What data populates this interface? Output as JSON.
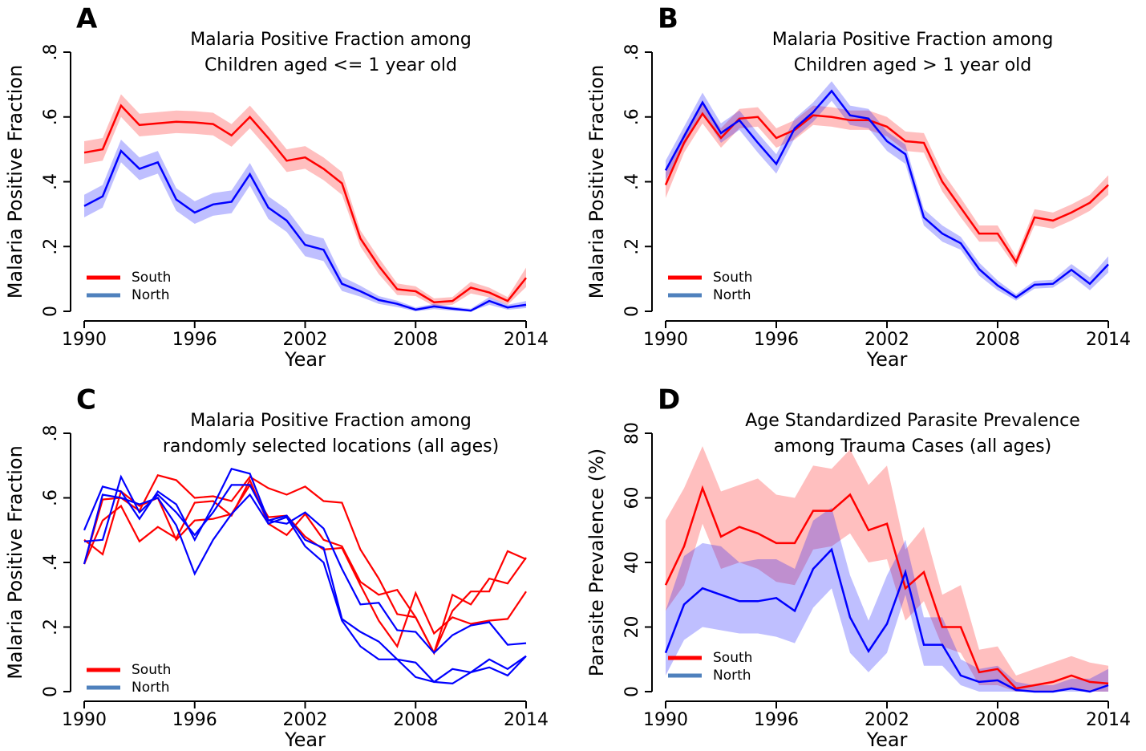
{
  "chart_data": [
    {
      "type": "line",
      "panel_label": "A",
      "title": [
        "Malaria Positive Fraction among",
        "Children aged <= 1 year old"
      ],
      "x_label": "Year",
      "y_label": "Malaria Positive Fraction",
      "x": [
        1990,
        1991,
        1992,
        1993,
        1994,
        1995,
        1996,
        1997,
        1998,
        1999,
        2000,
        2001,
        2002,
        2003,
        2004,
        2005,
        2006,
        2007,
        2008,
        2009,
        2010,
        2011,
        2012,
        2013,
        2014
      ],
      "xlim": [
        1990,
        2014
      ],
      "xticks": [
        1990,
        1996,
        2002,
        2008,
        2014
      ],
      "ylim": [
        0,
        0.8
      ],
      "yticks": [
        0,
        {
          "value": 0.2,
          "label": ".2"
        },
        {
          "value": 0.4,
          "label": ".4"
        },
        {
          "value": 0.6,
          "label": ".6"
        },
        {
          "value": 0.8,
          "label": ".8"
        }
      ],
      "legend_position": "lower left",
      "series": [
        {
          "name": "South",
          "color": "#ff0000",
          "band_color": "rgba(255,0,0,0.25)",
          "legend_color": "#ff0000",
          "values": [
            0.49,
            0.5,
            0.635,
            0.575,
            0.58,
            0.585,
            0.583,
            0.578,
            0.543,
            0.6,
            0.535,
            0.465,
            0.475,
            0.44,
            0.395,
            0.225,
            0.14,
            0.068,
            0.062,
            0.028,
            0.032,
            0.073,
            0.058,
            0.032,
            0.103
          ],
          "lower": [
            0.455,
            0.465,
            0.6,
            0.54,
            0.545,
            0.55,
            0.548,
            0.543,
            0.508,
            0.565,
            0.5,
            0.43,
            0.44,
            0.405,
            0.36,
            0.2,
            0.115,
            0.05,
            0.047,
            0.016,
            0.02,
            0.055,
            0.043,
            0.02,
            0.075
          ],
          "upper": [
            0.525,
            0.535,
            0.67,
            0.61,
            0.615,
            0.62,
            0.618,
            0.613,
            0.578,
            0.635,
            0.57,
            0.5,
            0.51,
            0.475,
            0.43,
            0.25,
            0.165,
            0.086,
            0.077,
            0.04,
            0.044,
            0.091,
            0.073,
            0.044,
            0.135
          ]
        },
        {
          "name": "North",
          "color": "#0000ff",
          "band_color": "rgba(0,0,255,0.25)",
          "legend_color": "#4f81bd",
          "values": [
            0.325,
            0.355,
            0.495,
            0.44,
            0.46,
            0.345,
            0.305,
            0.33,
            0.338,
            0.423,
            0.32,
            0.28,
            0.205,
            0.19,
            0.085,
            0.062,
            0.035,
            0.023,
            0.005,
            0.015,
            0.008,
            0.002,
            0.032,
            0.012,
            0.02
          ],
          "lower": [
            0.29,
            0.32,
            0.46,
            0.405,
            0.425,
            0.31,
            0.27,
            0.295,
            0.303,
            0.388,
            0.285,
            0.245,
            0.17,
            0.155,
            0.063,
            0.045,
            0.023,
            0.013,
            0,
            0.007,
            0.002,
            0,
            0.02,
            0.005,
            0.01
          ],
          "upper": [
            0.36,
            0.39,
            0.53,
            0.475,
            0.495,
            0.38,
            0.34,
            0.365,
            0.373,
            0.458,
            0.355,
            0.315,
            0.24,
            0.225,
            0.107,
            0.079,
            0.047,
            0.033,
            0.012,
            0.023,
            0.014,
            0.008,
            0.044,
            0.02,
            0.032
          ]
        }
      ]
    },
    {
      "type": "line",
      "panel_label": "B",
      "title": [
        "Malaria Positive Fraction among",
        "Children aged > 1 year old"
      ],
      "x_label": "Year",
      "y_label": "Malaria Positive Fraction",
      "x": [
        1990,
        1991,
        1992,
        1993,
        1994,
        1995,
        1996,
        1997,
        1998,
        1999,
        2000,
        2001,
        2002,
        2003,
        2004,
        2005,
        2006,
        2007,
        2008,
        2009,
        2010,
        2011,
        2012,
        2013,
        2014
      ],
      "xlim": [
        1990,
        2014
      ],
      "xticks": [
        1990,
        1996,
        2002,
        2008,
        2014
      ],
      "ylim": [
        0,
        0.8
      ],
      "yticks": [
        0,
        {
          "value": 0.2,
          "label": ".2"
        },
        {
          "value": 0.4,
          "label": ".4"
        },
        {
          "value": 0.6,
          "label": ".6"
        },
        {
          "value": 0.8,
          "label": ".8"
        }
      ],
      "legend_position": "lower left",
      "series": [
        {
          "name": "South",
          "color": "#ff0000",
          "band_color": "rgba(255,0,0,0.25)",
          "legend_color": "#ff0000",
          "values": [
            0.39,
            0.52,
            0.61,
            0.535,
            0.595,
            0.6,
            0.535,
            0.56,
            0.605,
            0.6,
            0.59,
            0.59,
            0.57,
            0.525,
            0.52,
            0.4,
            0.32,
            0.24,
            0.24,
            0.152,
            0.29,
            0.28,
            0.305,
            0.335,
            0.39
          ],
          "lower": [
            0.35,
            0.49,
            0.58,
            0.505,
            0.565,
            0.57,
            0.505,
            0.53,
            0.575,
            0.57,
            0.56,
            0.56,
            0.54,
            0.495,
            0.49,
            0.37,
            0.29,
            0.215,
            0.215,
            0.135,
            0.265,
            0.255,
            0.28,
            0.31,
            0.36
          ],
          "upper": [
            0.43,
            0.55,
            0.64,
            0.565,
            0.625,
            0.63,
            0.565,
            0.59,
            0.635,
            0.63,
            0.62,
            0.62,
            0.6,
            0.555,
            0.55,
            0.43,
            0.35,
            0.265,
            0.265,
            0.17,
            0.315,
            0.305,
            0.33,
            0.36,
            0.42
          ]
        },
        {
          "name": "North",
          "color": "#0000ff",
          "band_color": "rgba(0,0,255,0.25)",
          "legend_color": "#4f81bd",
          "values": [
            0.435,
            0.54,
            0.645,
            0.55,
            0.59,
            0.52,
            0.455,
            0.565,
            0.615,
            0.68,
            0.605,
            0.595,
            0.525,
            0.485,
            0.29,
            0.24,
            0.21,
            0.13,
            0.08,
            0.043,
            0.082,
            0.085,
            0.128,
            0.085,
            0.145
          ],
          "lower": [
            0.405,
            0.51,
            0.615,
            0.52,
            0.56,
            0.49,
            0.425,
            0.535,
            0.585,
            0.65,
            0.575,
            0.565,
            0.495,
            0.455,
            0.265,
            0.215,
            0.19,
            0.11,
            0.065,
            0.033,
            0.07,
            0.073,
            0.11,
            0.065,
            0.12
          ],
          "upper": [
            0.465,
            0.57,
            0.675,
            0.58,
            0.62,
            0.55,
            0.485,
            0.595,
            0.645,
            0.71,
            0.635,
            0.625,
            0.555,
            0.515,
            0.315,
            0.265,
            0.23,
            0.15,
            0.095,
            0.053,
            0.094,
            0.097,
            0.146,
            0.105,
            0.17
          ]
        }
      ]
    },
    {
      "type": "line",
      "panel_label": "C",
      "title": [
        "Malaria Positive Fraction among",
        "randomly selected locations (all ages)"
      ],
      "x_label": "Year",
      "y_label": "Malaria Positive Fraction",
      "x": [
        1990,
        1991,
        1992,
        1993,
        1994,
        1995,
        1996,
        1997,
        1998,
        1999,
        2000,
        2001,
        2002,
        2003,
        2004,
        2005,
        2006,
        2007,
        2008,
        2009,
        2010,
        2011,
        2012,
        2013,
        2014
      ],
      "xlim": [
        1990,
        2014
      ],
      "xticks": [
        1990,
        1996,
        2002,
        2008,
        2014
      ],
      "ylim": [
        0,
        0.8
      ],
      "yticks": [
        0,
        {
          "value": 0.2,
          "label": ".2"
        },
        {
          "value": 0.4,
          "label": ".4"
        },
        {
          "value": 0.6,
          "label": ".6"
        },
        {
          "value": 0.8,
          "label": ".8"
        }
      ],
      "legend_position": "lower left",
      "series": [
        {
          "name": "South",
          "color": "#ff0000",
          "legend_color": "#ff0000",
          "lines": [
            [
              0.395,
              0.595,
              0.6,
              0.56,
              0.67,
              0.655,
              0.6,
              0.605,
              0.59,
              0.665,
              0.63,
              0.61,
              0.635,
              0.59,
              0.585,
              0.44,
              0.35,
              0.24,
              0.23,
              0.12,
              0.3,
              0.27,
              0.35,
              0.335,
              0.415
            ],
            [
              0.47,
              0.425,
              0.62,
              0.575,
              0.6,
              0.47,
              0.53,
              0.535,
              0.55,
              0.64,
              0.54,
              0.545,
              0.48,
              0.44,
              0.445,
              0.33,
              0.22,
              0.14,
              0.305,
              0.18,
              0.23,
              0.21,
              0.22,
              0.225,
              0.31
            ],
            [
              0.395,
              0.53,
              0.575,
              0.465,
              0.51,
              0.475,
              0.585,
              0.59,
              0.545,
              0.655,
              0.52,
              0.485,
              0.55,
              0.47,
              0.45,
              0.34,
              0.3,
              0.315,
              0.23,
              0.12,
              0.25,
              0.31,
              0.31,
              0.435,
              0.41
            ]
          ]
        },
        {
          "name": "North",
          "color": "#0000ff",
          "legend_color": "#4f81bd",
          "lines": [
            [
              0.5,
              0.635,
              0.62,
              0.535,
              0.62,
              0.58,
              0.47,
              0.575,
              0.69,
              0.675,
              0.53,
              0.52,
              0.555,
              0.505,
              0.38,
              0.27,
              0.275,
              0.19,
              0.185,
              0.12,
              0.175,
              0.205,
              0.215,
              0.145,
              0.15
            ],
            [
              0.465,
              0.47,
              0.665,
              0.555,
              0.61,
              0.555,
              0.485,
              0.555,
              0.64,
              0.64,
              0.53,
              0.545,
              0.47,
              0.445,
              0.225,
              0.185,
              0.155,
              0.1,
              0.09,
              0.03,
              0.07,
              0.06,
              0.1,
              0.07,
              0.11
            ],
            [
              0.395,
              0.61,
              0.6,
              0.58,
              0.6,
              0.515,
              0.365,
              0.47,
              0.55,
              0.61,
              0.52,
              0.54,
              0.45,
              0.4,
              0.22,
              0.14,
              0.1,
              0.1,
              0.045,
              0.03,
              0.025,
              0.06,
              0.075,
              0.05,
              0.11
            ]
          ]
        }
      ]
    },
    {
      "type": "line",
      "panel_label": "D",
      "title": [
        "Age Standardized Parasite Prevalence",
        "among Trauma Cases (all ages)"
      ],
      "x_label": "Year",
      "y_label": "Parasite Prevalence (%)",
      "x": [
        1990,
        1991,
        1992,
        1993,
        1994,
        1995,
        1996,
        1997,
        1998,
        1999,
        2000,
        2001,
        2002,
        2003,
        2004,
        2005,
        2006,
        2007,
        2008,
        2009,
        2010,
        2011,
        2012,
        2013,
        2014
      ],
      "xlim": [
        1990,
        2014
      ],
      "xticks": [
        1990,
        1996,
        2002,
        2008,
        2014
      ],
      "ylim": [
        0,
        80
      ],
      "yticks": [
        0,
        20,
        40,
        60,
        80
      ],
      "legend_position": "lower left",
      "series": [
        {
          "name": "South",
          "color": "#ff0000",
          "band_color": "rgba(255,0,0,0.25)",
          "legend_color": "#ff0000",
          "values": [
            33,
            45,
            63,
            48,
            51,
            49,
            46,
            46,
            56,
            56,
            61,
            50,
            52,
            32,
            37,
            20,
            20,
            6,
            7,
            1,
            2,
            3,
            5,
            3,
            2.5
          ],
          "lower": [
            25,
            33,
            52,
            38,
            40,
            38,
            34,
            33,
            44,
            45,
            49,
            40,
            41,
            22,
            28,
            14,
            12,
            2,
            2,
            0,
            0,
            0,
            1,
            0,
            0
          ],
          "upper": [
            53,
            63,
            76,
            62,
            64,
            66,
            61,
            60,
            70,
            69,
            75,
            64,
            70,
            44,
            51,
            30,
            33,
            13,
            14,
            5,
            7,
            9,
            11,
            9,
            8
          ]
        },
        {
          "name": "North",
          "color": "#0000ff",
          "band_color": "rgba(0,0,255,0.25)",
          "legend_color": "#4f81bd",
          "values": [
            12,
            27,
            32,
            30,
            28,
            28,
            29,
            25,
            38,
            44,
            23,
            12.5,
            21,
            37,
            14.5,
            14.5,
            5,
            3,
            3.5,
            0.5,
            0,
            0,
            1,
            0,
            2
          ],
          "lower": [
            5,
            16,
            20,
            19,
            18,
            18,
            17,
            15,
            26,
            32,
            12,
            6,
            12,
            30,
            8,
            8,
            2,
            0,
            0,
            0,
            0,
            0,
            0,
            0,
            0
          ],
          "upper": [
            25,
            42,
            46,
            45,
            40,
            41,
            41,
            38,
            53,
            57,
            36,
            22,
            36,
            47,
            23,
            23,
            10,
            7,
            8,
            3,
            2,
            2,
            4,
            4,
            7
          ]
        }
      ]
    }
  ]
}
